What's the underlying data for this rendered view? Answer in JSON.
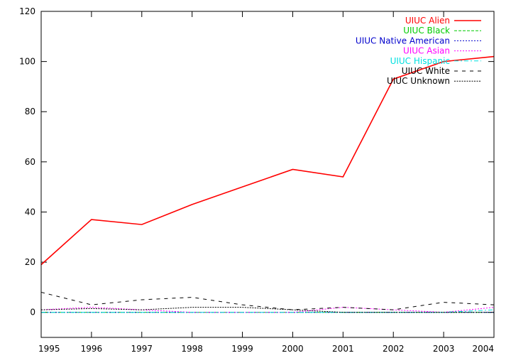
{
  "chart_data": {
    "type": "line",
    "title": "",
    "xlabel": "",
    "ylabel": "",
    "xlim": [
      1995,
      2004
    ],
    "ylim": [
      -10,
      120
    ],
    "x": [
      1995,
      1996,
      1997,
      1998,
      1999,
      2000,
      2001,
      2002,
      2003,
      2004
    ],
    "x_ticks": [
      "1995",
      "1996",
      "1997",
      "1998",
      "1999",
      "2000",
      "2001",
      "2002",
      "2003",
      "2004"
    ],
    "y_ticks": [
      "0",
      "20",
      "40",
      "60",
      "80",
      "100",
      "120"
    ],
    "grid": false,
    "legend_position": "top-right",
    "series": [
      {
        "name": "UIUC Alien",
        "color": "#ff0000",
        "dash": "solid",
        "values": [
          19,
          37,
          35,
          43,
          50,
          57,
          54,
          93,
          100,
          102
        ]
      },
      {
        "name": "UIUC Black",
        "color": "#00cc00",
        "dash": "dashed",
        "values": [
          0,
          0,
          0,
          0,
          0,
          0,
          0,
          0,
          0,
          0
        ]
      },
      {
        "name": "UIUC Native American",
        "color": "#0000cc",
        "dash": "dotted",
        "values": [
          0,
          0,
          0,
          0,
          0,
          0,
          0,
          0,
          0,
          0
        ]
      },
      {
        "name": "UIUC Asian",
        "color": "#ff00ff",
        "dash": "dotted",
        "values": [
          1,
          2,
          1,
          0,
          0,
          0,
          2,
          1,
          0,
          2
        ]
      },
      {
        "name": "UIUC Hispanic",
        "color": "#00e0e0",
        "dash": "dash-dot",
        "values": [
          0,
          0,
          0,
          0,
          0,
          0,
          0,
          0,
          0,
          1
        ]
      },
      {
        "name": "UIUC White",
        "color": "#000000",
        "dash": "long-dash",
        "values": [
          8,
          3,
          5,
          6,
          3,
          1,
          2,
          1,
          4,
          3
        ]
      },
      {
        "name": "UIUC Unknown",
        "color": "#000000",
        "dash": "dense-dotted",
        "values": [
          1,
          1.5,
          1,
          2,
          2,
          1,
          0,
          0,
          0,
          0
        ]
      }
    ]
  }
}
